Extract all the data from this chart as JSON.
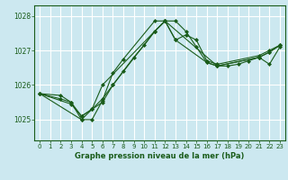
{
  "title": "Graphe pression niveau de la mer (hPa)",
  "bg_color": "#cce8f0",
  "grid_color": "#ffffff",
  "line_color": "#1a5c1a",
  "xlim": [
    -0.5,
    23.5
  ],
  "ylim": [
    1024.4,
    1028.3
  ],
  "yticks": [
    1025,
    1026,
    1027,
    1028
  ],
  "xticks": [
    0,
    1,
    2,
    3,
    4,
    5,
    6,
    7,
    8,
    9,
    10,
    11,
    12,
    13,
    14,
    15,
    16,
    17,
    18,
    19,
    20,
    21,
    22,
    23
  ],
  "series": [
    {
      "x": [
        0,
        2,
        3,
        4,
        5,
        6,
        7,
        8,
        9,
        10,
        11,
        12,
        13,
        14,
        15,
        16,
        17,
        18,
        19,
        20,
        21,
        22,
        23
      ],
      "y": [
        1025.75,
        1025.7,
        1025.5,
        1025.1,
        1025.3,
        1025.5,
        1026.0,
        1026.4,
        1026.8,
        1027.15,
        1027.55,
        1027.85,
        1027.85,
        1027.55,
        1027.1,
        1026.65,
        1026.55,
        1026.55,
        1026.6,
        1026.7,
        1026.8,
        1026.95,
        1027.15
      ]
    },
    {
      "x": [
        0,
        2,
        3,
        4,
        5,
        6,
        7,
        8,
        11,
        12,
        13,
        14,
        15,
        16,
        17,
        21,
        22,
        23
      ],
      "y": [
        1025.75,
        1025.6,
        1025.5,
        1025.0,
        1025.0,
        1025.55,
        1026.35,
        1026.75,
        1027.85,
        1027.85,
        1027.3,
        1027.45,
        1027.3,
        1026.7,
        1026.6,
        1026.85,
        1027.0,
        1027.15
      ]
    },
    {
      "x": [
        0,
        3,
        4,
        5,
        6,
        11,
        12,
        17,
        21,
        22,
        23
      ],
      "y": [
        1025.75,
        1025.45,
        1025.1,
        1025.3,
        1026.0,
        1027.55,
        1027.85,
        1026.55,
        1026.8,
        1026.6,
        1027.1
      ]
    },
    {
      "x": [
        0,
        4,
        5,
        6,
        7,
        11,
        12,
        13,
        16,
        17,
        21,
        22,
        23
      ],
      "y": [
        1025.75,
        1025.0,
        1025.3,
        1025.6,
        1026.0,
        1027.55,
        1027.85,
        1027.3,
        1026.65,
        1026.55,
        1026.8,
        1026.95,
        1027.15
      ]
    }
  ]
}
